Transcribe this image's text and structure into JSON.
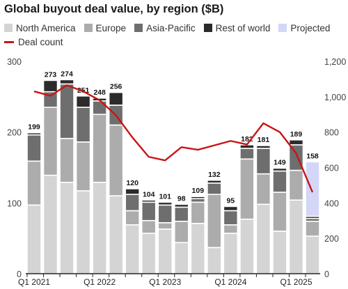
{
  "chart_data": {
    "type": "bar",
    "title": "Global buyout deal value, by region ($B)",
    "xlabel": "",
    "ylabel": "",
    "categories": [
      "Q1 2021",
      "Q2 2021",
      "Q3 2021",
      "Q4 2021",
      "Q1 2022",
      "Q2 2022",
      "Q3 2022",
      "Q4 2022",
      "Q1 2023",
      "Q2 2023",
      "Q3 2023",
      "Q4 2023",
      "Q1 2024",
      "Q2 2024",
      "Q3 2024",
      "Q4 2024",
      "Q1 2025",
      "Q2 2025"
    ],
    "x_tick_labels": [
      "Q1 2021",
      "Q1 2022",
      "Q1 2023",
      "Q1 2024",
      "Q1 2025"
    ],
    "ylim": [
      0,
      300
    ],
    "y_ticks": [
      "0",
      "100",
      "200",
      "300"
    ],
    "y2lim": [
      0,
      1200
    ],
    "y2_ticks": [
      "0",
      "200",
      "400",
      "600",
      "800",
      "1,000",
      "1,200"
    ],
    "totals": [
      "199",
      "273",
      "274",
      "251",
      "248",
      "256",
      "120",
      "104",
      "101",
      "98",
      "109",
      "132",
      "95",
      "182",
      "181",
      "149",
      "189",
      "158"
    ],
    "series": [
      {
        "name": "North America",
        "color": "#d4d4d4",
        "values": [
          97,
          139,
          129,
          117,
          129,
          110,
          69,
          57,
          63,
          44,
          71,
          37,
          57,
          77,
          98,
          60,
          104,
          53
        ]
      },
      {
        "name": "Europe",
        "color": "#acacac",
        "values": [
          62,
          96,
          62,
          69,
          96,
          100,
          20,
          18,
          9,
          30,
          30,
          75,
          12,
          85,
          43,
          55,
          42,
          21
        ]
      },
      {
        "name": "Asia-Pacific",
        "color": "#6e6e6e",
        "values": [
          37,
          22,
          77,
          49,
          19,
          28,
          23,
          26,
          25,
          20,
          5,
          16,
          20,
          15,
          36,
          30,
          36,
          4
        ]
      },
      {
        "name": "Rest of world",
        "color": "#2b2b2b",
        "values": [
          3,
          16,
          6,
          16,
          4,
          18,
          8,
          3,
          4,
          4,
          3,
          4,
          6,
          5,
          4,
          4,
          7,
          3
        ]
      },
      {
        "name": "Projected",
        "color": "#d4d6f7",
        "values": [
          0,
          0,
          0,
          0,
          0,
          0,
          0,
          0,
          0,
          0,
          0,
          0,
          0,
          0,
          0,
          0,
          0,
          77
        ]
      }
    ],
    "line_series": {
      "name": "Deal count",
      "color": "#c81414",
      "axis": "right",
      "values": [
        1030,
        1005,
        1065,
        1030,
        980,
        895,
        770,
        660,
        640,
        715,
        700,
        725,
        750,
        730,
        850,
        800,
        680,
        460
      ]
    },
    "legend_position": "top-left",
    "grid": false
  }
}
